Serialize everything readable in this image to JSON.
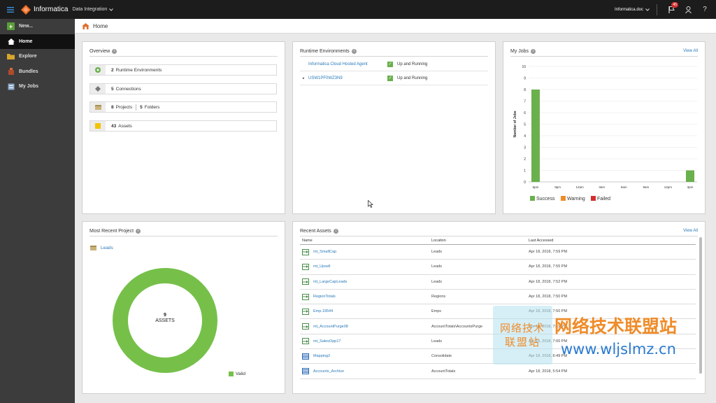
{
  "topbar": {
    "brand": "Informatica",
    "product": "Data Integration",
    "user": "Informatica.doc",
    "notifications_count": "45"
  },
  "sidebar": {
    "items": [
      {
        "label": "New...",
        "icon": "plus-icon"
      },
      {
        "label": "Home",
        "icon": "home-icon",
        "active": true
      },
      {
        "label": "Explore",
        "icon": "folder-icon"
      },
      {
        "label": "Bundles",
        "icon": "bundle-icon"
      },
      {
        "label": "My Jobs",
        "icon": "jobs-icon"
      }
    ]
  },
  "breadcrumb": {
    "label": "Home"
  },
  "overview": {
    "title": "Overview",
    "runtime_count": "2",
    "runtime_label": "Runtime Environments",
    "connections_count": "5",
    "connections_label": "Connections",
    "projects_count": "8",
    "projects_label": "Projects",
    "folders_count": "5",
    "folders_label": "Folders",
    "assets_count": "43",
    "assets_label": "Assets"
  },
  "runtime": {
    "title": "Runtime Environments",
    "rows": [
      {
        "name": "Informatica Cloud Hosted Agent",
        "status": "Up and Running"
      },
      {
        "name": "USW1PF0WZ3N9",
        "status": "Up and Running"
      }
    ]
  },
  "myjobs": {
    "title": "My Jobs",
    "view_all": "View All",
    "legend": {
      "success": "Success",
      "warning": "Warning",
      "failed": "Failed"
    },
    "colors": {
      "success": "#6ab04c",
      "warning": "#ef8c2a",
      "failed": "#d32f2f"
    }
  },
  "chart_data": {
    "type": "bar",
    "categories": [
      "6pm",
      "9pm",
      "12am",
      "3am",
      "6am",
      "9am",
      "12pm",
      "3pm"
    ],
    "series": [
      {
        "name": "Success",
        "values": [
          8,
          0,
          0,
          0,
          0,
          0,
          0,
          1
        ]
      },
      {
        "name": "Warning",
        "values": [
          0,
          0,
          0,
          0,
          0,
          0,
          0,
          0
        ]
      },
      {
        "name": "Failed",
        "values": [
          0,
          0,
          0,
          0,
          0,
          0,
          0,
          0
        ]
      }
    ],
    "ylabel": "Number of Jobs",
    "ylim": [
      0,
      10
    ],
    "yticks": [
      0,
      1,
      2,
      3,
      4,
      5,
      6,
      7,
      8,
      9,
      10
    ],
    "grid": true,
    "legend_position": "bottom"
  },
  "recent_project": {
    "title": "Most Recent Project",
    "name": "Leads",
    "count": "9",
    "count_label": "ASSETS",
    "legend": "Valid",
    "color": "#76c04a"
  },
  "recent_assets": {
    "title": "Recent Assets",
    "view_all": "View All",
    "columns": [
      "Name",
      "Location",
      "Last Accessed"
    ],
    "rows": [
      {
        "name": "mt_SmallCap",
        "location": "Leads",
        "accessed": "Apr 18, 2018, 7:59 PM",
        "icon": "mapping-task-icon"
      },
      {
        "name": "mt_Upsell",
        "location": "Leads",
        "accessed": "Apr 18, 2018, 7:55 PM",
        "icon": "mapping-task-icon"
      },
      {
        "name": "mt_LargeCapLeads",
        "location": "Leads",
        "accessed": "Apr 18, 2018, 7:52 PM",
        "icon": "mapping-task-icon"
      },
      {
        "name": "RegionTotals",
        "location": "Regions",
        "accessed": "Apr 18, 2018, 7:50 PM",
        "icon": "mapping-task-icon"
      },
      {
        "name": "Emp.19544",
        "location": "Emps",
        "accessed": "Apr 18, 2018, 7:50 PM",
        "icon": "mapping-task-icon"
      },
      {
        "name": "mt_AccountPurge08",
        "location": "AccountTotals\\AccountsPurge",
        "accessed": "Apr 18, 2018, 7:19 PM",
        "icon": "mapping-task-icon"
      },
      {
        "name": "mt_SalesOpp17",
        "location": "Leads",
        "accessed": "Apr 18, 2018, 7:00 PM",
        "icon": "mapping-task-icon"
      },
      {
        "name": "Mapping2",
        "location": "Consolidate",
        "accessed": "Apr 18, 2018, 6:49 PM",
        "icon": "mapping-icon"
      },
      {
        "name": "Accounts_Archive",
        "location": "AccountTotals",
        "accessed": "Apr 18, 2018, 5:54 PM",
        "icon": "mapping-icon"
      }
    ]
  },
  "watermark": {
    "box_line1": "网络技术",
    "box_line2": "联盟站",
    "text_cn": "网络技术联盟站",
    "text_url": "www.wljslmz.cn"
  }
}
